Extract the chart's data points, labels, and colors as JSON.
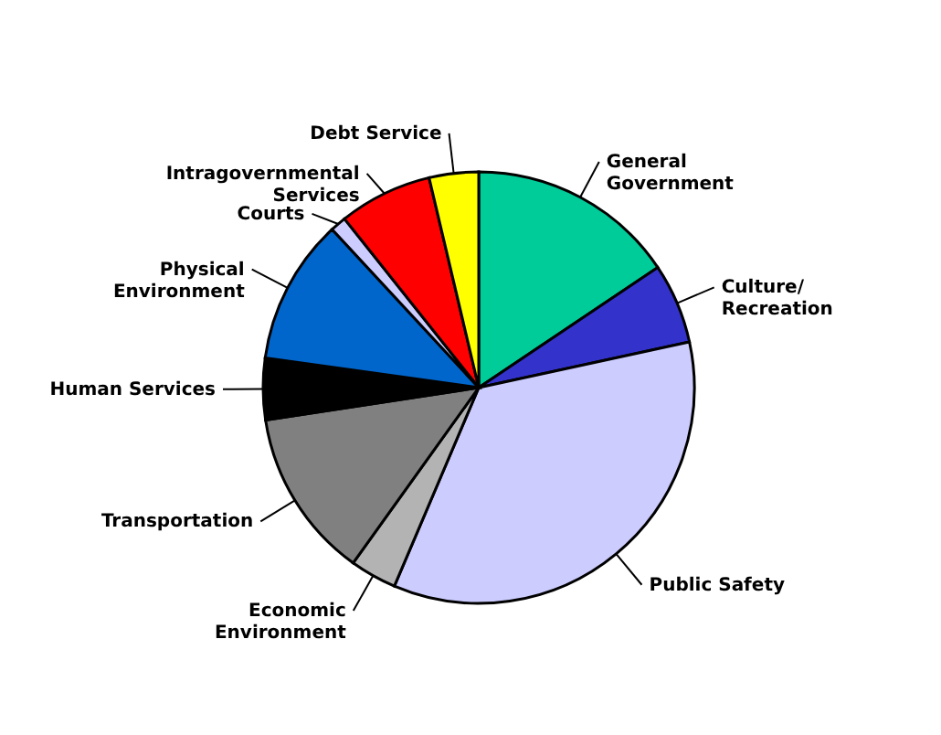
{
  "chart_data": {
    "type": "pie",
    "categories": [
      "General\nGovernment",
      "Culture/\nRecreation",
      "Public Safety",
      "Economic\nEnvironment",
      "Transportation",
      "Human Services",
      "Physical\nEnvironment",
      "Courts",
      "Intragovernmental\nServices",
      "Debt Service"
    ],
    "values": [
      15.6,
      6.0,
      34.8,
      3.5,
      12.7,
      4.6,
      10.9,
      1.2,
      7.0,
      3.7
    ],
    "colors": [
      "#00cc99",
      "#3333cc",
      "#ccccff",
      "#b3b3b3",
      "#808080",
      "#000000",
      "#0066cc",
      "#ccccff",
      "#ff0000",
      "#ffff00"
    ]
  }
}
